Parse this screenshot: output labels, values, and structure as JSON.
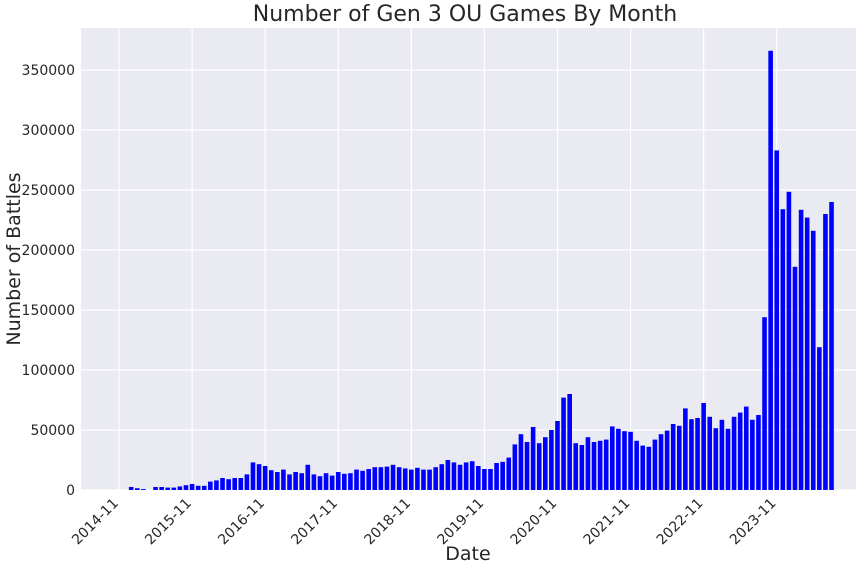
{
  "chart_data": {
    "type": "bar",
    "title": "Number of Gen 3 OU Games By Month",
    "xlabel": "Date",
    "ylabel": "Number of Battles",
    "ylim": [
      0,
      385000
    ],
    "yticks": [
      0,
      50000,
      100000,
      150000,
      200000,
      250000,
      300000,
      350000
    ],
    "xticks": [
      "2014-11",
      "2015-11",
      "2016-11",
      "2017-11",
      "2018-11",
      "2019-11",
      "2020-11",
      "2021-11",
      "2022-11",
      "2023-11"
    ],
    "grid": true,
    "bar_color": "#0000ff",
    "background": "#eaeaf2",
    "start_month": "2015-01",
    "values": [
      2500,
      1500,
      800,
      0,
      2500,
      2500,
      2000,
      2000,
      3000,
      4000,
      5000,
      3500,
      3500,
      7000,
      8000,
      10000,
      9000,
      10000,
      10000,
      13000,
      23000,
      21500,
      20000,
      16500,
      15000,
      17000,
      13000,
      15000,
      14000,
      21000,
      13000,
      11500,
      14000,
      12000,
      15000,
      13500,
      14000,
      17000,
      16000,
      17500,
      19000,
      19000,
      19500,
      21000,
      19000,
      18000,
      17000,
      18500,
      17000,
      17000,
      19000,
      21500,
      25000,
      23000,
      21000,
      23000,
      24000,
      20000,
      17500,
      17500,
      22500,
      23500,
      27000,
      38000,
      46500,
      40000,
      52500,
      39000,
      44000,
      50000,
      57500,
      77000,
      80000,
      39000,
      37500,
      44000,
      40000,
      41000,
      42000,
      53000,
      51000,
      49000,
      48500,
      41000,
      37000,
      36000,
      42000,
      46500,
      49500,
      55000,
      53500,
      68000,
      59000,
      60000,
      72500,
      61000,
      51500,
      58500,
      51000,
      61000,
      64500,
      69500,
      58500,
      62500,
      144000,
      366000,
      283000,
      234000,
      248500,
      186000,
      233500,
      227000,
      216000,
      119000,
      230000,
      240000
    ]
  }
}
